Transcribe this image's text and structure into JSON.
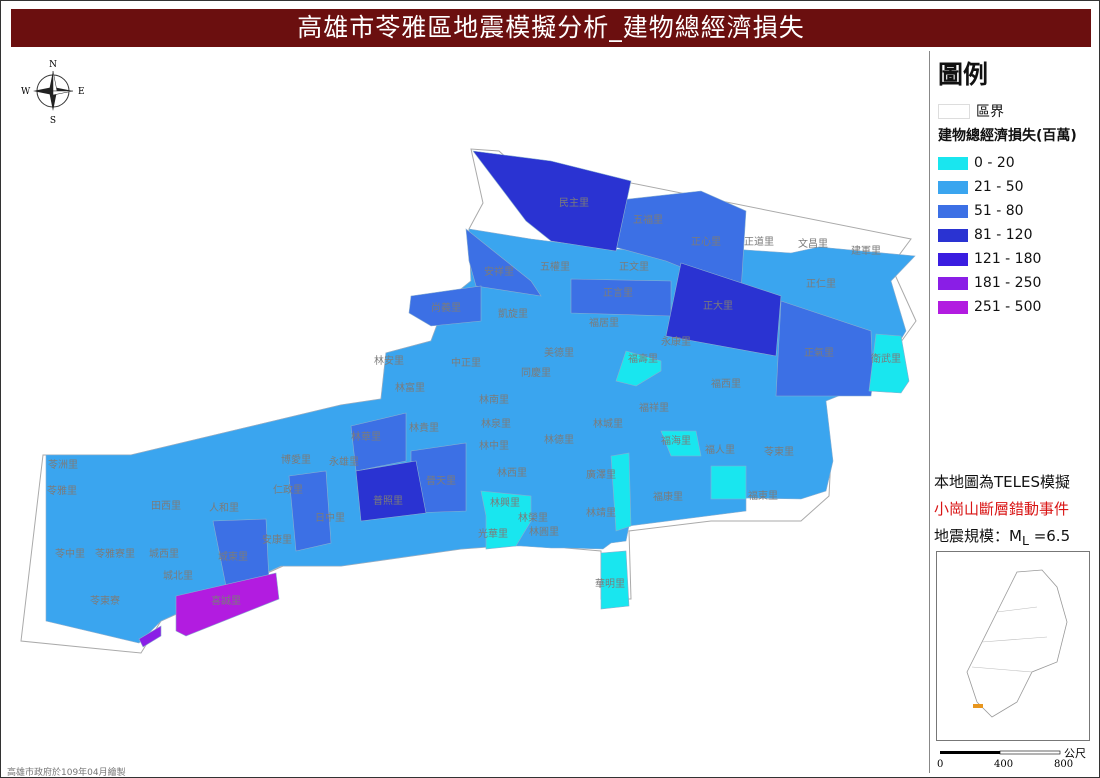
{
  "title": "高雄市苓雅區地震模擬分析_建物總經濟損失",
  "compass": {
    "n": "N",
    "s": "S",
    "e": "E",
    "w": "W"
  },
  "legend": {
    "title": "圖例",
    "boundary_label": "區界",
    "heading": "建物總經濟損失(百萬)",
    "classes": [
      {
        "label": "0 - 20",
        "color": "#19e6ef"
      },
      {
        "label": "21 - 50",
        "color": "#3aa5ef"
      },
      {
        "label": "51 - 80",
        "color": "#3c70e5"
      },
      {
        "label": "81 - 120",
        "color": "#2a33d2"
      },
      {
        "label": "121 - 180",
        "color": "#3a1de0"
      },
      {
        "label": "181 - 250",
        "color": "#8a1ee6"
      },
      {
        "label": "251 - 500",
        "color": "#b21ce0"
      }
    ]
  },
  "note": {
    "line1": "本地圖為TELES模擬",
    "line2": "小崗山斷層錯動事件",
    "line3_prefix": "地震規模：M",
    "line3_sub": "L",
    "line3_suffix": " =6.5"
  },
  "scale": {
    "unit": "公尺",
    "ticks": [
      "0",
      "400",
      "800"
    ]
  },
  "credit": "高雄市政府於109年04月繪製",
  "villages": [
    "民主里",
    "五福里",
    "正心里",
    "正道里",
    "文昌里",
    "建軍里",
    "安祥里",
    "五權里",
    "正文里",
    "正仁里",
    "正言里",
    "正大里",
    "尚義里",
    "凱旋里",
    "福居里",
    "永康里",
    "正氣里",
    "衛武里",
    "林安里",
    "中正里",
    "美德里",
    "同慶里",
    "福壽里",
    "林富里",
    "福西里",
    "林南里",
    "福祥里",
    "林泉里",
    "林城里",
    "林華里",
    "林貴里",
    "福海里",
    "林中里",
    "林德里",
    "福人里",
    "苓東里",
    "苓洲里",
    "永雄里",
    "苓雅里",
    "田西里",
    "人和里",
    "仁政里",
    "博愛里",
    "安康里",
    "福康里",
    "日中里",
    "普照里",
    "晉天里",
    "林西里",
    "林興里",
    "林榮里",
    "光華里",
    "林靖里",
    "林圓里",
    "苓中里",
    "苓雅寮里",
    "城西里",
    "城東里",
    "城北里",
    "苓東寮",
    "廣澤里",
    "福東里",
    "華明里",
    "喜誠里",
    "凱旋中",
    "福祥中"
  ]
}
